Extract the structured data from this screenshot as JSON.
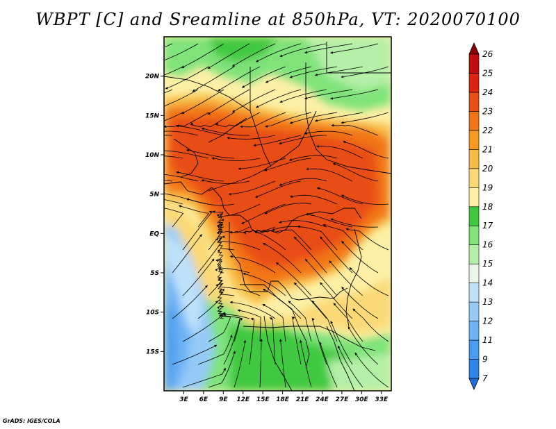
{
  "title": "WBPT [C] and Sreamline at 850hPa, VT: 2020070100",
  "credit": "GrADS: IGES/COLA",
  "map": {
    "lat_ticks": [
      "20N",
      "15N",
      "10N",
      "5N",
      "EQ",
      "5S",
      "10S",
      "15S"
    ],
    "lat_values": [
      20,
      15,
      10,
      5,
      0,
      -5,
      -10,
      -15
    ],
    "lon_ticks": [
      "3E",
      "6E",
      "9E",
      "12E",
      "15E",
      "18E",
      "21E",
      "24E",
      "27E",
      "30E",
      "33E"
    ],
    "lon_values": [
      3,
      6,
      9,
      12,
      15,
      18,
      21,
      24,
      27,
      30,
      33
    ],
    "lon_range": [
      0,
      34.5
    ],
    "lat_range": [
      -20,
      25
    ],
    "variable": "WBPT [C]",
    "level": "850hPa",
    "valid_time": "2020070100"
  },
  "colorbar": {
    "levels": [
      "7",
      "9",
      "11",
      "12",
      "13",
      "14",
      "15",
      "16",
      "17",
      "18",
      "19",
      "20",
      "21",
      "22",
      "23",
      "24",
      "25",
      "26"
    ],
    "colors": [
      "#1e6fdc",
      "#2f85e8",
      "#4a9cf0",
      "#6db3f5",
      "#96caf7",
      "#bfe2fa",
      "#e8f8e8",
      "#b4f0a8",
      "#7fe37a",
      "#3fc93f",
      "#fdf0a6",
      "#fbd977",
      "#f7bc45",
      "#f59a1f",
      "#f27616",
      "#e94e14",
      "#dd2410",
      "#c00d0d",
      "#8b0000"
    ]
  }
}
